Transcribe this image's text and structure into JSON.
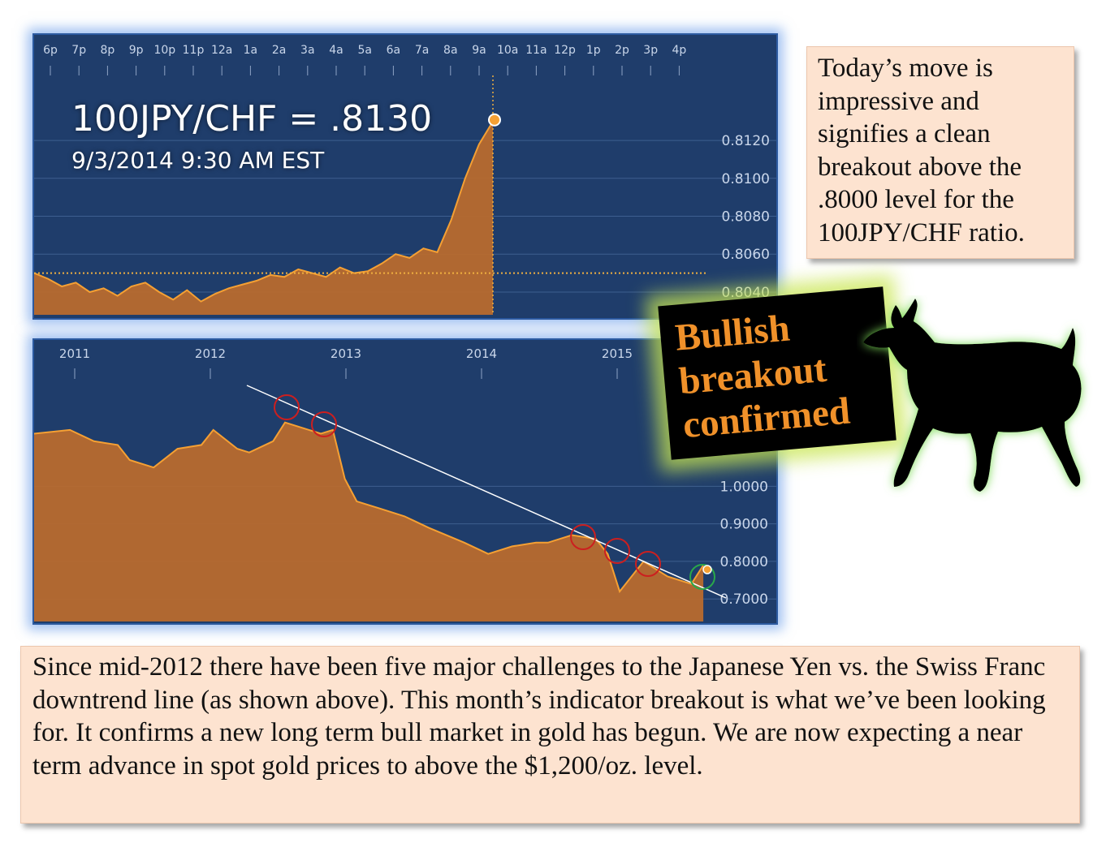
{
  "headline": "100JPY/CHF = .8130",
  "timestamp": "9/3/2014 9:30 AM EST",
  "side_note": "Today’s move is impressive and signifies a clean breakout above the .8000 level for the 100JPY/CHF ratio.",
  "stamp_lines": [
    "Bullish",
    "breakout",
    "confirmed"
  ],
  "bottom_note": "Since mid-2012 there have been five major challenges to the Japanese Yen vs. the Swiss Franc downtrend line (as shown above). This month’s indicator breakout is what we’ve been looking for. It confirms a new long term bull market in gold has begun. We are now expecting a near term advance in spot gold prices to above the $1,200/oz. level.",
  "icons": {
    "bull": "bull-icon"
  },
  "colors": {
    "panel_bg": "#1f3d6b",
    "fill": "#b86a2e",
    "line": "#f5a033",
    "note_bg": "#fde3d0",
    "stamp_text": "#f0912a",
    "glow": "#c8e650"
  },
  "chart_data": [
    {
      "type": "area",
      "title": "",
      "x_ticks": [
        "6p",
        "7p",
        "8p",
        "9p",
        "10p",
        "11p",
        "12a",
        "1a",
        "2a",
        "3a",
        "4a",
        "5a",
        "6a",
        "7a",
        "8a",
        "9a",
        "10a",
        "11a",
        "12p",
        "1p",
        "2p",
        "3p",
        "4p"
      ],
      "y_ticks": [
        "0.8120",
        "0.8100",
        "0.8080",
        "0.8060",
        "0.8040"
      ],
      "ylim": [
        0.8028,
        0.815
      ],
      "reference_level": 0.805,
      "last_value": 0.813,
      "x": [
        "6p",
        "6:30p",
        "7p",
        "7:30p",
        "8p",
        "8:30p",
        "9p",
        "9:30p",
        "10p",
        "10:30p",
        "11p",
        "11:30p",
        "12a",
        "12:30a",
        "1a",
        "1:30a",
        "2a",
        "2:30a",
        "3a",
        "3:30a",
        "4a",
        "4:30a",
        "5a",
        "5:30a",
        "6a",
        "6:30a",
        "7a",
        "7:30a",
        "8a",
        "8:30a",
        "8:45a",
        "9a",
        "9:15a",
        "9:30a"
      ],
      "values": [
        0.805,
        0.8047,
        0.8043,
        0.8045,
        0.804,
        0.8042,
        0.8038,
        0.8043,
        0.8045,
        0.804,
        0.8036,
        0.8041,
        0.8035,
        0.8039,
        0.8042,
        0.8044,
        0.8046,
        0.8049,
        0.8048,
        0.8052,
        0.805,
        0.8048,
        0.8053,
        0.805,
        0.8051,
        0.8055,
        0.806,
        0.8058,
        0.8063,
        0.8061,
        0.8078,
        0.81,
        0.8118,
        0.813
      ]
    },
    {
      "type": "area",
      "title": "",
      "x_ticks": [
        "2011",
        "2012",
        "2013",
        "2014",
        "2015"
      ],
      "y_ticks": [
        "1.0000",
        "0.9000",
        "0.8000",
        "0.7000"
      ],
      "ylim": [
        0.64,
        1.26
      ],
      "x": [
        "2010-10",
        "2011-01",
        "2011-03",
        "2011-05",
        "2011-06",
        "2011-08",
        "2011-10",
        "2011-12",
        "2012-01",
        "2012-03",
        "2012-04",
        "2012-06",
        "2012-07",
        "2012-08",
        "2012-10",
        "2012-11",
        "2012-12",
        "2013-01",
        "2013-03",
        "2013-05",
        "2013-07",
        "2013-10",
        "2013-12",
        "2014-02",
        "2014-04",
        "2014-05",
        "2014-07",
        "2014-09",
        "2014-10",
        "2014-11",
        "2015-01",
        "2015-03",
        "2015-05",
        "2015-06"
      ],
      "values": [
        1.14,
        1.15,
        1.12,
        1.11,
        1.07,
        1.05,
        1.1,
        1.11,
        1.15,
        1.1,
        1.09,
        1.12,
        1.17,
        1.16,
        1.14,
        1.15,
        1.02,
        0.96,
        0.94,
        0.92,
        0.89,
        0.85,
        0.82,
        0.84,
        0.85,
        0.85,
        0.87,
        0.86,
        0.82,
        0.72,
        0.8,
        0.76,
        0.74,
        0.79
      ],
      "annotations": [
        "downtrend line",
        "five challenge circles",
        "breakout circle"
      ]
    }
  ]
}
